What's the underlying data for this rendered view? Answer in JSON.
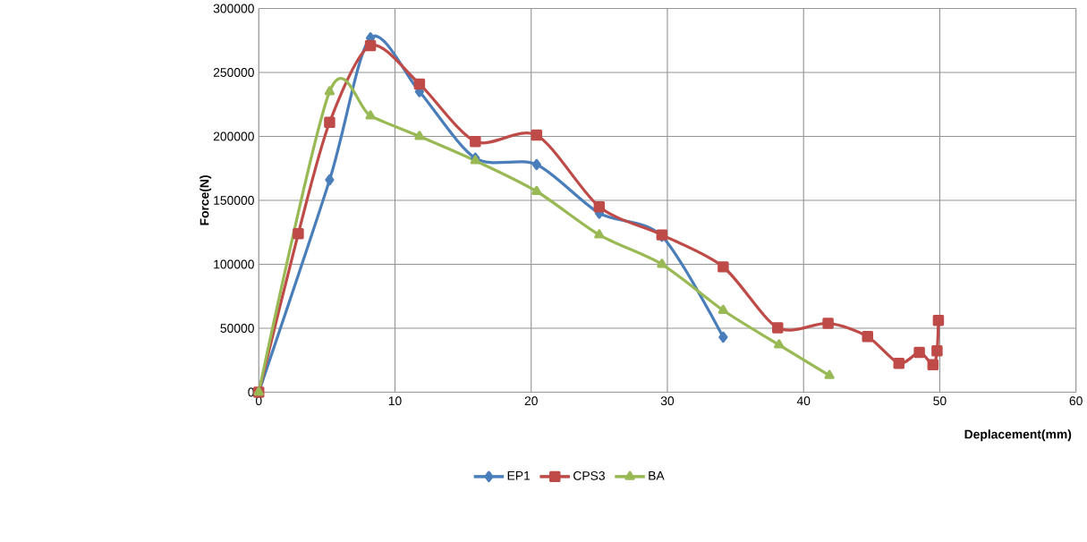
{
  "chart_data": {
    "type": "line",
    "xlabel": "Deplacement(mm)",
    "ylabel": "Force(N)",
    "xlim": [
      0,
      60
    ],
    "xticks": [
      0,
      10,
      20,
      30,
      40,
      50,
      60
    ],
    "ylim": [
      0,
      300000
    ],
    "yticks": [
      0,
      50000,
      100000,
      150000,
      200000,
      250000,
      300000
    ],
    "grid": true,
    "legend": "bottom",
    "line_style": "solid",
    "series": [
      {
        "name": "EP1",
        "color": "#4a7ebb",
        "marker": "diamond",
        "x": [
          0,
          5.2,
          8.2,
          11.8,
          15.9,
          20.4,
          25,
          29.6,
          34.1
        ],
        "values": [
          0,
          166000,
          277000,
          235000,
          183000,
          178000,
          140000,
          122000,
          43000
        ]
      },
      {
        "name": "CPS3",
        "color": "#be4b48",
        "marker": "square",
        "x": [
          0,
          2.9,
          5.2,
          8.2,
          11.8,
          15.9,
          20.4,
          25,
          29.6,
          34.1,
          38.1,
          41.8,
          44.7,
          47.0,
          48.5,
          49.5,
          49.8,
          49.9
        ],
        "values": [
          0,
          124000,
          211000,
          271000,
          241000,
          196000,
          201000,
          145000,
          123000,
          98000,
          50400,
          53900,
          43500,
          22600,
          31200,
          21500,
          32300,
          56200
        ]
      },
      {
        "name": "BA",
        "color": "#98b954",
        "marker": "triangle",
        "x": [
          0,
          5.2,
          8.2,
          11.8,
          15.9,
          20.4,
          25,
          29.6,
          34.1,
          38.2,
          41.9
        ],
        "values": [
          0,
          235000,
          216000,
          200000,
          181000,
          157000,
          123000,
          100000,
          64000,
          37000,
          13000
        ]
      }
    ]
  }
}
